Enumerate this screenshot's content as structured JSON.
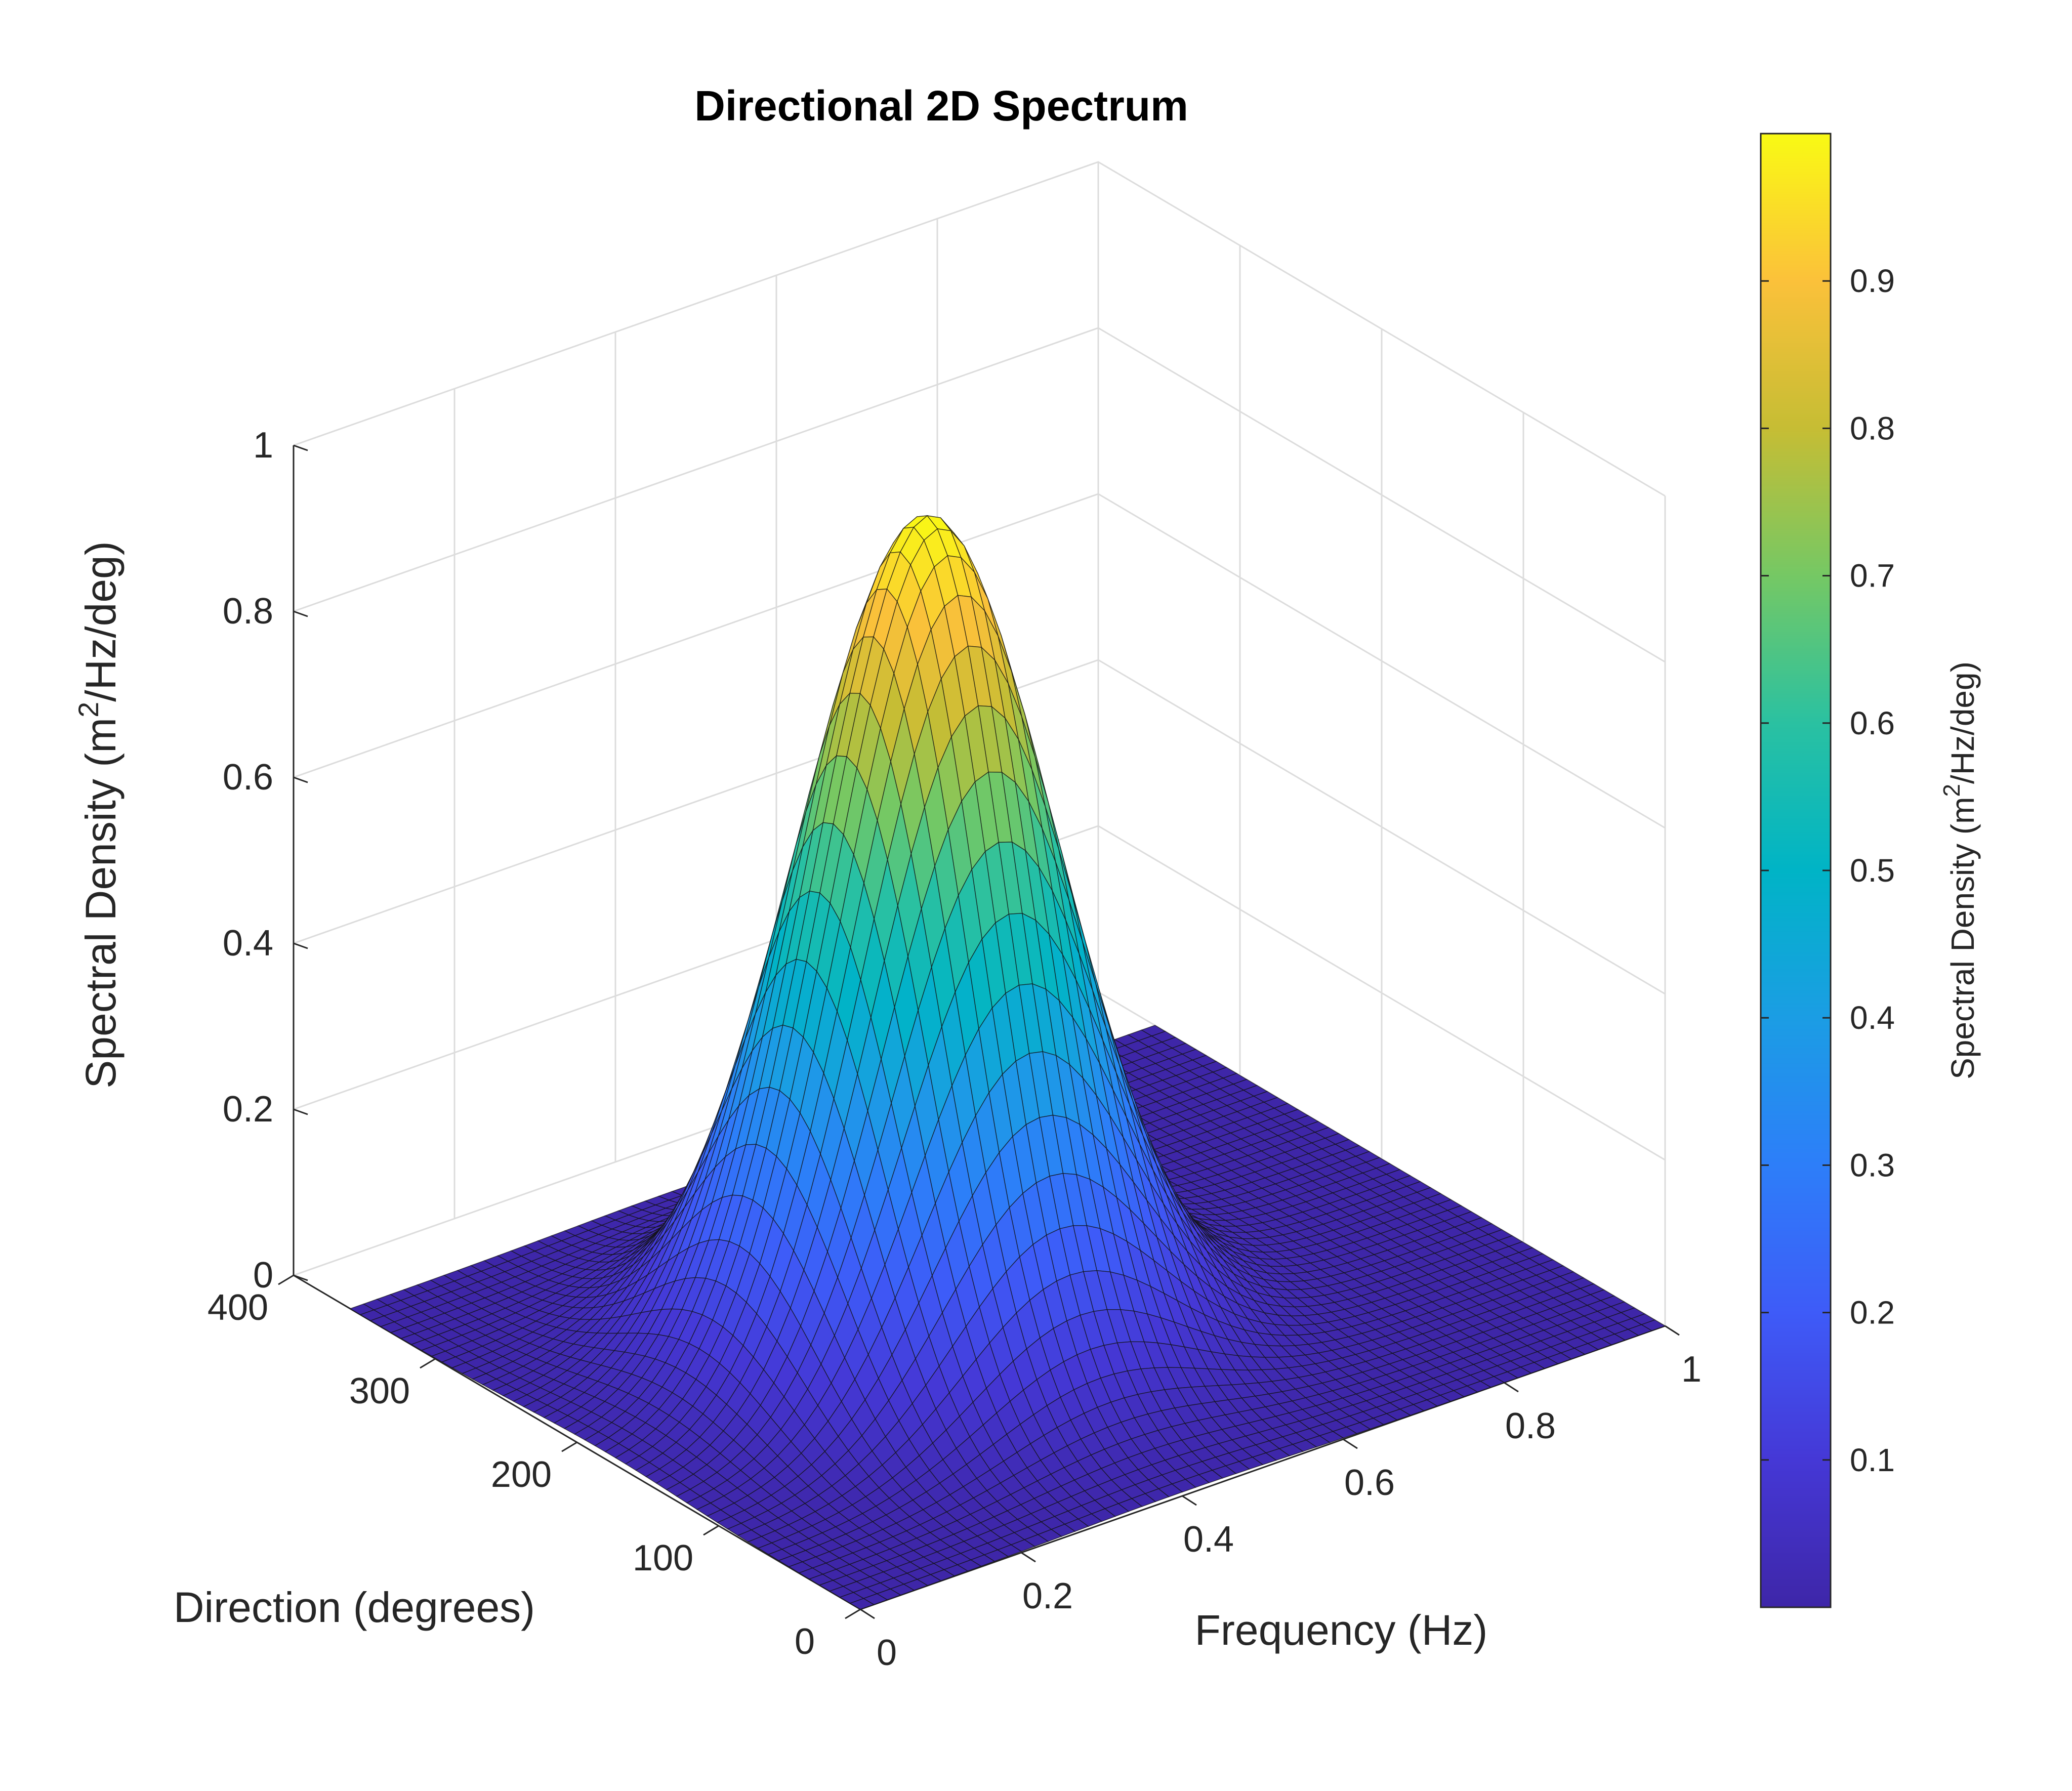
{
  "chart_data": {
    "type": "surface",
    "title": "Directional 2D Spectrum",
    "xlabel": "Frequency (Hz)",
    "ylabel": "Direction (degrees)",
    "zlabel_main": "Spectral Density (m",
    "zlabel_sup": "2",
    "zlabel_tail": "/Hz/deg)",
    "xlim": [
      0,
      1
    ],
    "ylim": [
      0,
      400
    ],
    "zlim": [
      0,
      1
    ],
    "xticks": [
      "0",
      "0.2",
      "0.4",
      "0.6",
      "0.8",
      "1"
    ],
    "yticks": [
      "0",
      "100",
      "200",
      "300",
      "400"
    ],
    "zticks": [
      "0",
      "0.2",
      "0.4",
      "0.6",
      "0.8",
      "1"
    ],
    "grid": true,
    "colormap": "parula",
    "peak": {
      "frequency": 0.4,
      "direction": 180,
      "value": 1.0
    },
    "freq_range": [
      0,
      1
    ],
    "dir_range": [
      0,
      360
    ],
    "colorbar": {
      "label_main": "Spectral Density (m",
      "label_sup": "2",
      "label_tail": "/Hz/deg)",
      "range": [
        0,
        1
      ],
      "ticks": [
        "0.1",
        "0.2",
        "0.3",
        "0.4",
        "0.5",
        "0.6",
        "0.7",
        "0.8",
        "0.9"
      ]
    }
  }
}
